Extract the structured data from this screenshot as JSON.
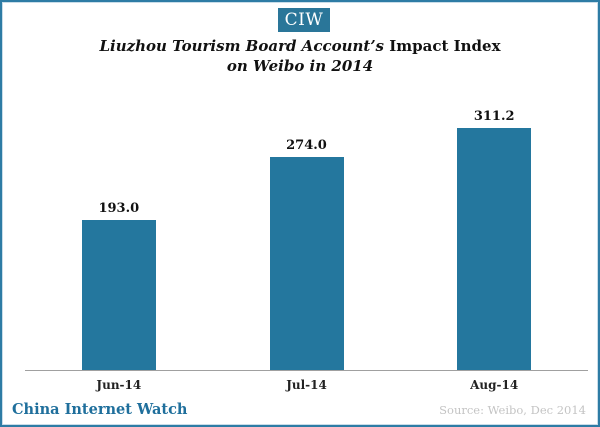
{
  "header": {
    "logo_text": "CIW",
    "logo_bg": "#2a7699",
    "title_italic": "Liuzhou Tourism Board Account’s",
    "title_regular": "Impact Index",
    "title_line2": "on Weibo in 2014"
  },
  "chart_data": {
    "type": "bar",
    "title": "Liuzhou Tourism Board Account’s Impact Index on Weibo in 2014",
    "categories": [
      "Jun-14",
      "Jul-14",
      "Aug-14"
    ],
    "values": [
      193.0,
      274.0,
      311.2
    ],
    "labels": [
      "193.0",
      "274.0",
      "311.2"
    ],
    "xlabel": "",
    "ylabel": "",
    "ylim": [
      0,
      360
    ],
    "grid": false,
    "legend": false,
    "bar_color": "#24779e",
    "axis_line_color": "#a0a0a0",
    "label_position": "above-bar"
  },
  "footer": {
    "brand": "China Internet Watch",
    "source": "Source: Weibo, Dec 2014",
    "brand_color": "#1f6f9c",
    "source_color": "#c4c4c4"
  },
  "frame": {
    "border_color": "#2e7ca5"
  }
}
